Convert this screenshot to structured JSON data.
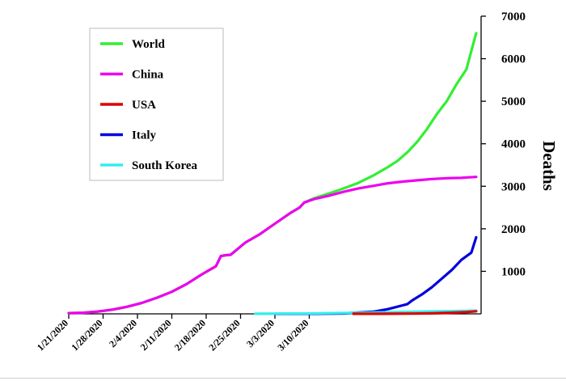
{
  "chart_data": {
    "type": "line",
    "title": "",
    "xlabel": "",
    "ylabel": "Deaths",
    "ylim": [
      0,
      7000
    ],
    "y_ticks": [
      1000,
      2000,
      3000,
      4000,
      5000,
      6000,
      7000
    ],
    "y_axis_side": "right",
    "x_start": "1/21/2020",
    "x_ticks": [
      "1/21/2020",
      "1/28/2020",
      "2/4/2020",
      "2/11/2020",
      "2/18/2020",
      "2/25/2020",
      "3/3/2020",
      "3/10/2020"
    ],
    "grid": false,
    "legend_position": "top-left",
    "series": [
      {
        "name": "World",
        "color": "#33ee33",
        "points": [
          [
            "1/21/2020",
            17
          ],
          [
            "1/24/2020",
            26
          ],
          [
            "1/27/2020",
            56
          ],
          [
            "1/30/2020",
            100
          ],
          [
            "2/2/2020",
            170
          ],
          [
            "2/5/2020",
            260
          ],
          [
            "2/8/2020",
            380
          ],
          [
            "2/11/2020",
            520
          ],
          [
            "2/14/2020",
            700
          ],
          [
            "2/17/2020",
            920
          ],
          [
            "2/20/2020",
            1120
          ],
          [
            "2/21/2020",
            1360
          ],
          [
            "2/22/2020",
            1380
          ],
          [
            "2/23/2020",
            1390
          ],
          [
            "2/26/2020",
            1680
          ],
          [
            "2/29/2020",
            1880
          ],
          [
            "3/3/2020",
            2120
          ],
          [
            "3/6/2020",
            2360
          ],
          [
            "3/8/2020",
            2500
          ],
          [
            "3/9/2020",
            2620
          ],
          [
            "3/11/2020",
            2720
          ],
          [
            "3/14/2020",
            2830
          ],
          [
            "3/17/2020",
            2950
          ],
          [
            "3/20/2020",
            3080
          ],
          [
            "3/23/2020",
            3250
          ],
          [
            "3/26/2020",
            3450
          ],
          [
            "3/28/2020",
            3600
          ],
          [
            "3/30/2020",
            3800
          ],
          [
            "4/1/2020",
            4050
          ],
          [
            "4/3/2020",
            4350
          ],
          [
            "4/5/2020",
            4700
          ],
          [
            "4/7/2020",
            5000
          ],
          [
            "4/9/2020",
            5400
          ],
          [
            "4/11/2020",
            5750
          ],
          [
            "4/13/2020",
            6600
          ]
        ]
      },
      {
        "name": "China",
        "color": "#ee00ee",
        "points": [
          [
            "1/21/2020",
            17
          ],
          [
            "1/24/2020",
            26
          ],
          [
            "1/27/2020",
            56
          ],
          [
            "1/30/2020",
            100
          ],
          [
            "2/2/2020",
            170
          ],
          [
            "2/5/2020",
            260
          ],
          [
            "2/8/2020",
            380
          ],
          [
            "2/11/2020",
            520
          ],
          [
            "2/14/2020",
            700
          ],
          [
            "2/17/2020",
            920
          ],
          [
            "2/20/2020",
            1120
          ],
          [
            "2/21/2020",
            1360
          ],
          [
            "2/22/2020",
            1380
          ],
          [
            "2/23/2020",
            1390
          ],
          [
            "2/26/2020",
            1680
          ],
          [
            "2/29/2020",
            1880
          ],
          [
            "3/3/2020",
            2120
          ],
          [
            "3/6/2020",
            2360
          ],
          [
            "3/8/2020",
            2500
          ],
          [
            "3/9/2020",
            2620
          ],
          [
            "3/11/2020",
            2700
          ],
          [
            "3/14/2020",
            2780
          ],
          [
            "3/17/2020",
            2870
          ],
          [
            "3/20/2020",
            2950
          ],
          [
            "3/23/2020",
            3010
          ],
          [
            "3/26/2020",
            3070
          ],
          [
            "3/29/2020",
            3110
          ],
          [
            "4/1/2020",
            3140
          ],
          [
            "4/4/2020",
            3170
          ],
          [
            "4/7/2020",
            3190
          ],
          [
            "4/10/2020",
            3200
          ],
          [
            "4/13/2020",
            3220
          ]
        ]
      },
      {
        "name": "USA",
        "color": "#dd0000",
        "points": [
          [
            "3/19/2020",
            1
          ],
          [
            "3/25/2020",
            2
          ],
          [
            "3/31/2020",
            6
          ],
          [
            "4/4/2020",
            12
          ],
          [
            "4/8/2020",
            26
          ],
          [
            "4/11/2020",
            41
          ],
          [
            "4/13/2020",
            60
          ]
        ]
      },
      {
        "name": "Italy",
        "color": "#0000dd",
        "points": [
          [
            "3/3/2020",
            0
          ],
          [
            "3/11/2020",
            2
          ],
          [
            "3/17/2020",
            10
          ],
          [
            "3/20/2020",
            30
          ],
          [
            "3/23/2020",
            50
          ],
          [
            "3/26/2020",
            110
          ],
          [
            "3/29/2020",
            200
          ],
          [
            "3/30/2020",
            230
          ],
          [
            "3/31/2020",
            320
          ],
          [
            "4/2/2020",
            460
          ],
          [
            "4/4/2020",
            630
          ],
          [
            "4/6/2020",
            830
          ],
          [
            "4/8/2020",
            1030
          ],
          [
            "4/10/2020",
            1270
          ],
          [
            "4/12/2020",
            1440
          ],
          [
            "4/13/2020",
            1800
          ]
        ]
      },
      {
        "name": "South Korea",
        "color": "#33eeee",
        "points": [
          [
            "2/28/2020",
            2
          ],
          [
            "3/10/2020",
            10
          ],
          [
            "3/20/2020",
            25
          ],
          [
            "3/30/2020",
            45
          ],
          [
            "4/5/2020",
            60
          ],
          [
            "4/13/2020",
            75
          ]
        ]
      }
    ]
  }
}
